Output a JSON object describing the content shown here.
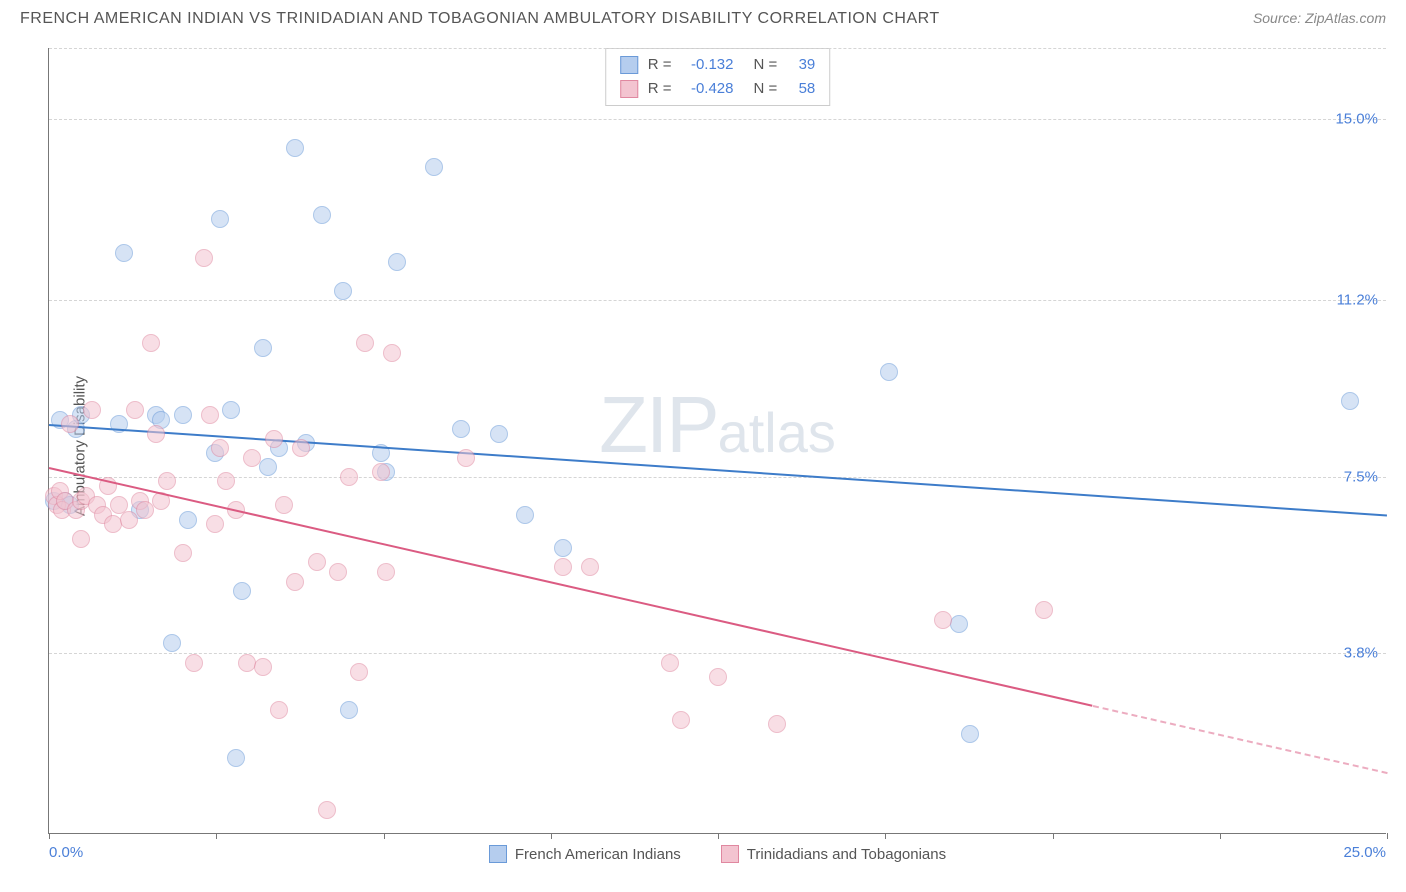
{
  "title": "FRENCH AMERICAN INDIAN VS TRINIDADIAN AND TOBAGONIAN AMBULATORY DISABILITY CORRELATION CHART",
  "source": "Source: ZipAtlas.com",
  "ylabel": "Ambulatory Disability",
  "watermark": {
    "prefix": "ZIP",
    "suffix": "atlas"
  },
  "chart": {
    "type": "scatter",
    "xlim": [
      0,
      25
    ],
    "ylim": [
      0,
      16.5
    ],
    "background_color": "#ffffff",
    "grid_color": "#d5d5d5",
    "axis_color": "#777777",
    "xlim_labels": {
      "min": "0.0%",
      "max": "25.0%"
    },
    "ytick_values": [
      3.8,
      7.5,
      11.2,
      15.0
    ],
    "ytick_labels": [
      "3.8%",
      "7.5%",
      "11.2%",
      "15.0%"
    ],
    "xtick_values": [
      0,
      3.125,
      6.25,
      9.375,
      12.5,
      15.625,
      18.75,
      21.875,
      25
    ],
    "tick_label_color": "#4a7fd8",
    "marker_radius": 9,
    "marker_opacity": 0.55,
    "marker_stroke_width": 1.2,
    "series": [
      {
        "name": "French American Indians",
        "fill_color": "#b5cdee",
        "stroke_color": "#6a9ad8",
        "line_color": "#3d7cc9",
        "R": "-0.132",
        "N": "39",
        "trend": {
          "x1": 0.0,
          "y1": 8.6,
          "x2": 25.0,
          "y2": 6.7,
          "solid_x_end": 25.0
        },
        "points": [
          [
            0.2,
            8.7
          ],
          [
            0.3,
            7.0
          ],
          [
            0.5,
            8.5
          ],
          [
            0.6,
            8.8
          ],
          [
            0.4,
            6.9
          ],
          [
            1.3,
            8.6
          ],
          [
            1.4,
            12.2
          ],
          [
            1.7,
            6.8
          ],
          [
            2.0,
            8.8
          ],
          [
            2.3,
            4.0
          ],
          [
            2.5,
            8.8
          ],
          [
            2.6,
            6.6
          ],
          [
            3.1,
            8.0
          ],
          [
            3.2,
            12.9
          ],
          [
            3.4,
            8.9
          ],
          [
            3.5,
            1.6
          ],
          [
            3.6,
            5.1
          ],
          [
            4.0,
            10.2
          ],
          [
            4.1,
            7.7
          ],
          [
            4.3,
            8.1
          ],
          [
            4.6,
            14.4
          ],
          [
            4.8,
            8.2
          ],
          [
            5.1,
            13.0
          ],
          [
            5.5,
            11.4
          ],
          [
            5.6,
            2.6
          ],
          [
            6.2,
            8.0
          ],
          [
            6.3,
            7.6
          ],
          [
            6.5,
            12.0
          ],
          [
            7.2,
            14.0
          ],
          [
            7.7,
            8.5
          ],
          [
            8.4,
            8.4
          ],
          [
            8.9,
            6.7
          ],
          [
            9.6,
            6.0
          ],
          [
            15.7,
            9.7
          ],
          [
            17.0,
            4.4
          ],
          [
            17.2,
            2.1
          ],
          [
            24.3,
            9.1
          ],
          [
            2.1,
            8.7
          ],
          [
            0.1,
            7.0
          ]
        ]
      },
      {
        "name": "Trinidadians and Tobagonians",
        "fill_color": "#f3c4d0",
        "stroke_color": "#e088a0",
        "line_color": "#db5b82",
        "R": "-0.428",
        "N": "58",
        "trend": {
          "x1": 0.0,
          "y1": 7.7,
          "x2": 25.0,
          "y2": 1.3,
          "solid_x_end": 19.5
        },
        "points": [
          [
            0.1,
            7.1
          ],
          [
            0.15,
            6.9
          ],
          [
            0.2,
            7.2
          ],
          [
            0.25,
            6.8
          ],
          [
            0.3,
            7.0
          ],
          [
            0.4,
            8.6
          ],
          [
            0.5,
            6.8
          ],
          [
            0.6,
            7.0
          ],
          [
            0.6,
            6.2
          ],
          [
            0.7,
            7.1
          ],
          [
            0.8,
            8.9
          ],
          [
            0.9,
            6.9
          ],
          [
            1.0,
            6.7
          ],
          [
            1.1,
            7.3
          ],
          [
            1.2,
            6.5
          ],
          [
            1.3,
            6.9
          ],
          [
            1.5,
            6.6
          ],
          [
            1.6,
            8.9
          ],
          [
            1.7,
            7.0
          ],
          [
            1.8,
            6.8
          ],
          [
            1.9,
            10.3
          ],
          [
            2.1,
            7.0
          ],
          [
            2.2,
            7.4
          ],
          [
            2.5,
            5.9
          ],
          [
            2.7,
            3.6
          ],
          [
            2.9,
            12.1
          ],
          [
            3.0,
            8.8
          ],
          [
            3.1,
            6.5
          ],
          [
            3.2,
            8.1
          ],
          [
            3.5,
            6.8
          ],
          [
            3.7,
            3.6
          ],
          [
            3.8,
            7.9
          ],
          [
            4.0,
            3.5
          ],
          [
            4.2,
            8.3
          ],
          [
            4.3,
            2.6
          ],
          [
            4.4,
            6.9
          ],
          [
            4.6,
            5.3
          ],
          [
            4.7,
            8.1
          ],
          [
            5.0,
            5.7
          ],
          [
            5.2,
            0.5
          ],
          [
            5.4,
            5.5
          ],
          [
            5.6,
            7.5
          ],
          [
            5.8,
            3.4
          ],
          [
            5.9,
            10.3
          ],
          [
            6.2,
            7.6
          ],
          [
            6.3,
            5.5
          ],
          [
            6.4,
            10.1
          ],
          [
            7.8,
            7.9
          ],
          [
            9.6,
            5.6
          ],
          [
            10.1,
            5.6
          ],
          [
            11.6,
            3.6
          ],
          [
            11.8,
            2.4
          ],
          [
            12.5,
            3.3
          ],
          [
            13.6,
            2.3
          ],
          [
            16.7,
            4.5
          ],
          [
            18.6,
            4.7
          ],
          [
            3.3,
            7.4
          ],
          [
            2.0,
            8.4
          ]
        ]
      }
    ]
  },
  "legend_top": {
    "R_label": "R =",
    "N_label": "N ="
  },
  "legend_bottom_labels": [
    "French American Indians",
    "Trinidadians and Tobagonians"
  ]
}
